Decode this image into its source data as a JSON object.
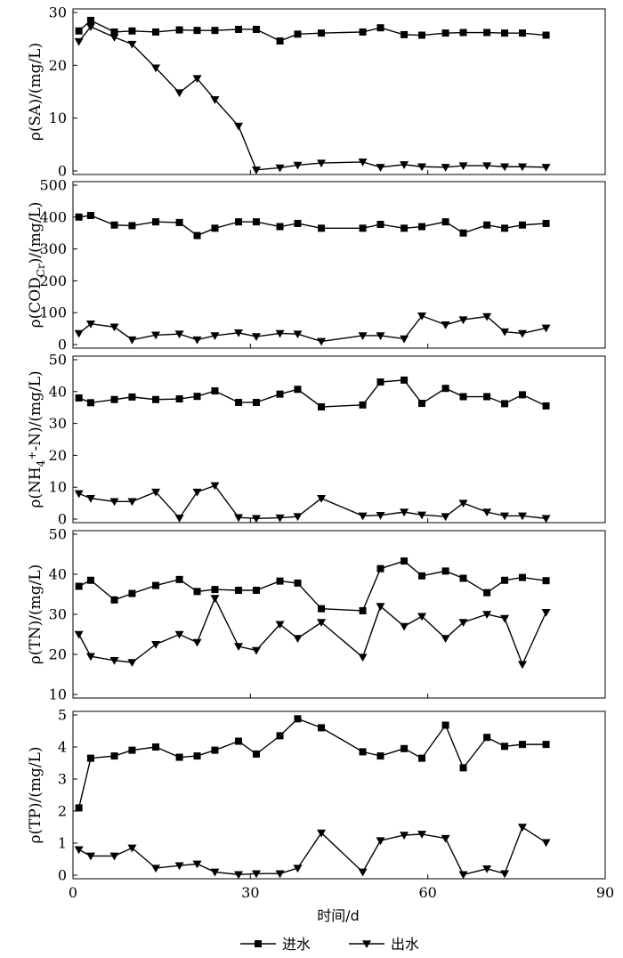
{
  "chart_data": {
    "type": "line",
    "xlabel": "时间/d",
    "xlim": [
      0,
      90
    ],
    "xticks": [
      0,
      30,
      60,
      90
    ],
    "legend": {
      "placement": "bottom",
      "entries": [
        {
          "name": "进水",
          "marker": "square"
        },
        {
          "name": "出水",
          "marker": "triangle-down"
        }
      ]
    },
    "grid": false,
    "panels": [
      {
        "ylabel": "ρ(SA)/(mg/L)",
        "ylim": [
          0,
          30
        ],
        "yticks": [
          0,
          10,
          20,
          30
        ],
        "series": [
          {
            "name": "进水",
            "x": [
              1,
              3,
              7,
              10,
              14,
              18,
              21,
              24,
              28,
              31,
              35,
              38,
              42,
              49,
              52,
              56,
              59,
              63,
              66,
              70,
              73,
              76,
              80
            ],
            "values": [
              26.5,
              28.5,
              26.3,
              26.5,
              26.3,
              26.7,
              26.6,
              26.6,
              26.8,
              26.8,
              24.6,
              25.9,
              26.1,
              26.3,
              27.1,
              25.8,
              25.7,
              26.1,
              26.2,
              26.2,
              26.1,
              26.1,
              25.7
            ]
          },
          {
            "name": "出水",
            "x": [
              1,
              3,
              7,
              10,
              14,
              18,
              21,
              24,
              28,
              31,
              35,
              38,
              42,
              49,
              52,
              56,
              59,
              63,
              66,
              70,
              73,
              76,
              80
            ],
            "values": [
              24.5,
              27.3,
              25.3,
              24,
              19.5,
              14.8,
              17.5,
              13.5,
              8.5,
              0.2,
              0.6,
              1.1,
              1.5,
              1.7,
              0.7,
              1.2,
              0.8,
              0.7,
              1,
              1,
              0.8,
              0.8,
              0.7
            ]
          }
        ]
      },
      {
        "ylabel": "ρ(CODCr)/(mg/L)",
        "ylabel_parts": {
          "prefix": "ρ(COD",
          "sub": "Cr",
          "suffix": ")/(mg/L)"
        },
        "ylim": [
          0,
          500
        ],
        "yticks": [
          0,
          100,
          200,
          300,
          400,
          500
        ],
        "series": [
          {
            "name": "进水",
            "x": [
              1,
              3,
              7,
              10,
              14,
              18,
              21,
              24,
              28,
              31,
              35,
              38,
              42,
              49,
              52,
              56,
              59,
              63,
              66,
              70,
              73,
              76,
              80
            ],
            "values": [
              400,
              405,
              375,
              373,
              385,
              383,
              342,
              365,
              385,
              385,
              370,
              380,
              365,
              365,
              377,
              365,
              370,
              385,
              350,
              375,
              365,
              375,
              380
            ]
          },
          {
            "name": "出水",
            "x": [
              1,
              3,
              7,
              10,
              14,
              18,
              21,
              24,
              28,
              31,
              35,
              38,
              42,
              49,
              52,
              56,
              59,
              63,
              66,
              70,
              73,
              76,
              80
            ],
            "values": [
              35,
              65,
              55,
              15,
              30,
              33,
              15,
              28,
              37,
              25,
              35,
              33,
              10,
              28,
              28,
              18,
              90,
              62,
              78,
              88,
              40,
              35,
              52
            ]
          }
        ]
      },
      {
        "ylabel": "ρ(NH4+-N)/(mg/L)",
        "ylabel_parts": {
          "prefix": "ρ(NH",
          "sub": "4",
          "sup": "+",
          "suffix": "-N)/(mg/L)"
        },
        "ylim": [
          0,
          50
        ],
        "yticks": [
          0,
          10,
          20,
          30,
          40,
          50
        ],
        "series": [
          {
            "name": "进水",
            "x": [
              1,
              3,
              7,
              10,
              14,
              18,
              21,
              24,
              28,
              31,
              35,
              38,
              42,
              49,
              52,
              56,
              59,
              63,
              66,
              70,
              73,
              76,
              80
            ],
            "values": [
              38,
              36.5,
              37.5,
              38.3,
              37.5,
              37.7,
              38.5,
              40.2,
              36.6,
              36.6,
              39.2,
              40.7,
              35.2,
              35.8,
              43,
              43.6,
              36.3,
              41,
              38.4,
              38.4,
              36.2,
              39,
              35.5
            ]
          },
          {
            "name": "出水",
            "x": [
              1,
              3,
              7,
              10,
              14,
              18,
              21,
              24,
              28,
              31,
              35,
              38,
              42,
              49,
              52,
              56,
              59,
              63,
              66,
              70,
              73,
              76,
              80
            ],
            "values": [
              8,
              6.5,
              5.5,
              5.5,
              8.5,
              0.3,
              8.5,
              10.5,
              0.5,
              0.2,
              0.4,
              0.8,
              6.5,
              1,
              1.2,
              2.2,
              1.3,
              0.8,
              5,
              2.2,
              1,
              1,
              0.2
            ]
          }
        ]
      },
      {
        "ylabel": "ρ(TN)/(mg/L)",
        "ylim": [
          10,
          50
        ],
        "yticks": [
          10,
          20,
          30,
          40,
          50
        ],
        "series": [
          {
            "name": "进水",
            "x": [
              1,
              3,
              7,
              10,
              14,
              18,
              21,
              24,
              28,
              31,
              35,
              38,
              42,
              49,
              52,
              56,
              59,
              63,
              66,
              70,
              73,
              76,
              80
            ],
            "values": [
              37,
              38.5,
              33.6,
              35.2,
              37.2,
              38.7,
              35.7,
              36.2,
              36,
              36,
              38.3,
              37.8,
              31.4,
              30.9,
              41.4,
              43.3,
              39.6,
              40.8,
              39,
              35.4,
              38.5,
              39.2,
              38.4
            ]
          },
          {
            "name": "出水",
            "x": [
              1,
              3,
              7,
              10,
              14,
              18,
              21,
              24,
              28,
              31,
              35,
              38,
              42,
              49,
              52,
              56,
              59,
              63,
              66,
              70,
              73,
              76,
              80
            ],
            "values": [
              25,
              19.5,
              18.5,
              18,
              22.5,
              25,
              23,
              34,
              22,
              21,
              27.5,
              24,
              28,
              19.3,
              32,
              27,
              29.5,
              24,
              28,
              30,
              29,
              17.5,
              30.5
            ]
          }
        ]
      },
      {
        "ylabel": "ρ(TP)/(mg/L)",
        "ylim": [
          0,
          5
        ],
        "yticks": [
          0,
          1,
          2,
          3,
          4,
          5
        ],
        "series": [
          {
            "name": "进水",
            "x": [
              1,
              3,
              7,
              10,
              14,
              18,
              21,
              24,
              28,
              31,
              35,
              38,
              42,
              49,
              52,
              56,
              59,
              63,
              66,
              70,
              73,
              76,
              80
            ],
            "values": [
              2.1,
              3.65,
              3.72,
              3.9,
              4,
              3.68,
              3.72,
              3.9,
              4.18,
              3.78,
              4.35,
              4.88,
              4.6,
              3.85,
              3.72,
              3.95,
              3.65,
              4.68,
              3.35,
              4.3,
              4.02,
              4.08,
              4.08
            ]
          },
          {
            "name": "出水",
            "x": [
              1,
              3,
              7,
              10,
              14,
              18,
              21,
              24,
              28,
              31,
              35,
              38,
              42,
              49,
              52,
              56,
              59,
              63,
              66,
              70,
              73,
              76,
              80
            ],
            "values": [
              0.8,
              0.6,
              0.6,
              0.85,
              0.22,
              0.3,
              0.35,
              0.1,
              0.02,
              0.05,
              0.05,
              0.22,
              1.32,
              0.1,
              1.08,
              1.25,
              1.28,
              1.15,
              0.02,
              0.2,
              0.05,
              1.5,
              1.02
            ]
          }
        ]
      }
    ]
  }
}
